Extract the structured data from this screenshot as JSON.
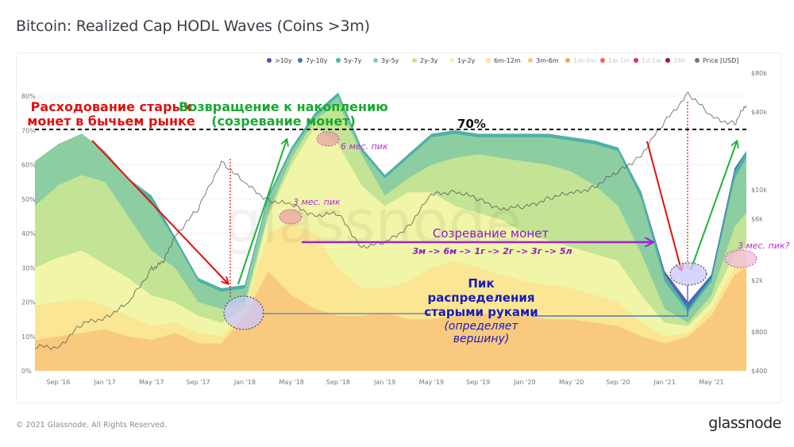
{
  "page": {
    "title": "Bitcoin: Realized Cap HODL Waves (Coins >3m)",
    "footer_copyright": "© 2021 Glassnode. All Rights Reserved.",
    "footer_logo": "glassnode",
    "watermark": "glassnode"
  },
  "legend": [
    {
      "label": ">10y",
      "color": "#5b4fa8",
      "active": true
    },
    {
      "label": "7y-10y",
      "color": "#3a78b5",
      "active": true
    },
    {
      "label": "5y-7y",
      "color": "#4fb5a5",
      "active": true
    },
    {
      "label": "3y-5y",
      "color": "#8fd0a0",
      "active": true
    },
    {
      "label": "2y-3y",
      "color": "#c5e594",
      "active": true
    },
    {
      "label": "1y-2y",
      "color": "#f2f5a8",
      "active": true
    },
    {
      "label": "6m-12m",
      "color": "#fbe38f",
      "active": true
    },
    {
      "label": "3m-6m",
      "color": "#f9c77c",
      "active": true
    },
    {
      "label": "1m-3m",
      "color": "#f4a35c",
      "active": false
    },
    {
      "label": "1w-1m",
      "color": "#ec6a4a",
      "active": false
    },
    {
      "label": "1d-1w",
      "color": "#d73350",
      "active": false
    },
    {
      "label": "24h",
      "color": "#a0103a",
      "active": false
    },
    {
      "label": "Price [USD]",
      "color": "#777777",
      "active": true
    }
  ],
  "chart_data": {
    "type": "area",
    "title": "Bitcoin: Realized Cap HODL Waves (Coins >3m)",
    "stacking": "stacked percentage (bottom = youngest cohort shown)",
    "x_ticks": [
      "Sep '16",
      "Jan '17",
      "May '17",
      "Sep '17",
      "Jan '18",
      "May '18",
      "Sep '18",
      "Jan '19",
      "May '19",
      "Sep '19",
      "Jan '20",
      "May '20",
      "Sep '20",
      "Jan '21",
      "May '21"
    ],
    "x_range": [
      "2016-07",
      "2021-08"
    ],
    "y_left": {
      "ticks": [
        "0%",
        "10%",
        "20%",
        "30%",
        "40%",
        "50%",
        "60%",
        "70%",
        "80%"
      ],
      "range": [
        0,
        80
      ],
      "unit": "%"
    },
    "y_right": {
      "ticks": [
        "$400",
        "$800",
        "$2k",
        "$6k",
        "$10k",
        "$40k",
        "$80k"
      ],
      "scale": "log",
      "range": [
        400,
        80000
      ]
    },
    "grid": true,
    "legend_position": "top",
    "x_months": [
      0,
      2,
      4,
      6,
      8,
      10,
      12,
      14,
      16,
      18,
      20,
      22,
      24,
      26,
      28,
      30,
      32,
      34,
      36,
      38,
      40,
      42,
      44,
      46,
      48,
      50,
      52,
      54,
      56,
      58,
      60,
      61
    ],
    "x_origin": "2016-07",
    "series": [
      {
        "name": "3m-6m",
        "values": [
          9,
          10,
          11,
          12,
          10,
          9,
          11,
          8,
          8,
          16,
          29,
          22,
          18,
          16,
          16,
          17,
          15,
          15,
          16,
          17,
          16,
          16,
          15,
          15,
          14,
          13,
          10,
          8,
          10,
          16,
          28,
          30
        ]
      },
      {
        "name": "6m-12m",
        "values": [
          19,
          20,
          21,
          19,
          16,
          13,
          14,
          11,
          10,
          17,
          40,
          43,
          40,
          30,
          24,
          24,
          26,
          30,
          32,
          30,
          28,
          26,
          25,
          24,
          22,
          20,
          14,
          10,
          11,
          18,
          30,
          32
        ]
      },
      {
        "name": "1y-2y",
        "values": [
          30,
          33,
          35,
          31,
          27,
          22,
          20,
          16,
          14,
          18,
          45,
          60,
          71,
          66,
          54,
          48,
          52,
          52,
          48,
          46,
          44,
          40,
          38,
          36,
          34,
          32,
          22,
          14,
          13,
          20,
          34,
          36
        ]
      },
      {
        "name": "2y-3y",
        "values": [
          48,
          54,
          57,
          55,
          45,
          35,
          30,
          20,
          18,
          20,
          46,
          62,
          73,
          78,
          63,
          51,
          56,
          60,
          62,
          63,
          62,
          61,
          60,
          58,
          54,
          48,
          34,
          18,
          14,
          22,
          42,
          46
        ]
      },
      {
        "name": "3y-5y",
        "values": [
          61,
          66,
          69,
          64,
          56,
          49,
          38,
          26,
          23,
          24,
          50,
          64,
          74,
          80,
          64,
          56,
          62,
          68,
          69,
          68,
          68,
          68,
          68,
          67,
          66,
          64,
          50,
          26,
          17,
          26,
          56,
          62
        ]
      },
      {
        "name": "5y-7y",
        "values": [
          61,
          66,
          69,
          64,
          56,
          51,
          39,
          27,
          24,
          25,
          51,
          65,
          75,
          81,
          65,
          57,
          63,
          69,
          70,
          69,
          69,
          69,
          69,
          68,
          67,
          65,
          52,
          28,
          18,
          27,
          58,
          64
        ]
      },
      {
        "name": "7y-10y",
        "values": [
          61,
          66,
          69,
          64,
          56,
          51,
          39,
          27,
          24,
          25,
          51,
          65,
          75,
          81,
          65,
          57,
          63,
          69,
          70,
          69,
          69,
          69,
          69,
          68,
          67,
          65,
          52,
          28,
          19,
          28,
          59,
          64
        ]
      },
      {
        "name": ">10y",
        "values": [
          61,
          66,
          69,
          64,
          56,
          51,
          39,
          27,
          24,
          25,
          51,
          65,
          75,
          81,
          65,
          57,
          63,
          69,
          70,
          69,
          69,
          69,
          69,
          68,
          67,
          65,
          52,
          29,
          20,
          28,
          59,
          64
        ]
      }
    ],
    "price_usd": {
      "months": [
        0,
        2,
        4,
        6,
        8,
        10,
        11,
        12,
        14,
        16,
        18,
        20,
        22,
        24,
        26,
        28,
        30,
        32,
        34,
        36,
        38,
        40,
        42,
        44,
        46,
        48,
        50,
        52,
        54,
        56,
        58,
        60,
        61
      ],
      "values": [
        600,
        620,
        900,
        1050,
        1300,
        2500,
        2700,
        4500,
        7000,
        17000,
        11000,
        8500,
        7500,
        6500,
        6400,
        3700,
        3800,
        5300,
        9000,
        10000,
        8300,
        7300,
        7200,
        8800,
        9200,
        10800,
        13500,
        19000,
        33000,
        57000,
        36000,
        33000,
        45000
      ]
    },
    "reference_line": {
      "value": 70,
      "label": "70%"
    }
  },
  "annotations": {
    "red_title_1": "Расходование старых",
    "red_title_2": "монет в бычьем рынке",
    "green_title_1": "Возвращение к накоплению",
    "green_title_2": "(созревание монет)",
    "line_70": "70%",
    "peak_6m": "6 мес. пик",
    "peak_3m": "3 мес. пик",
    "peak_3m_q": "3 мес. пик?",
    "maturation": "Созревание монет",
    "maturation_steps": "3м –> 6м –> 1г –> 2г –> 3г –> 5л",
    "distribution_1": "Пик",
    "distribution_2": "распределения",
    "distribution_3": "старыми руками",
    "distribution_4": "(определяет",
    "distribution_5": "вершину)"
  }
}
